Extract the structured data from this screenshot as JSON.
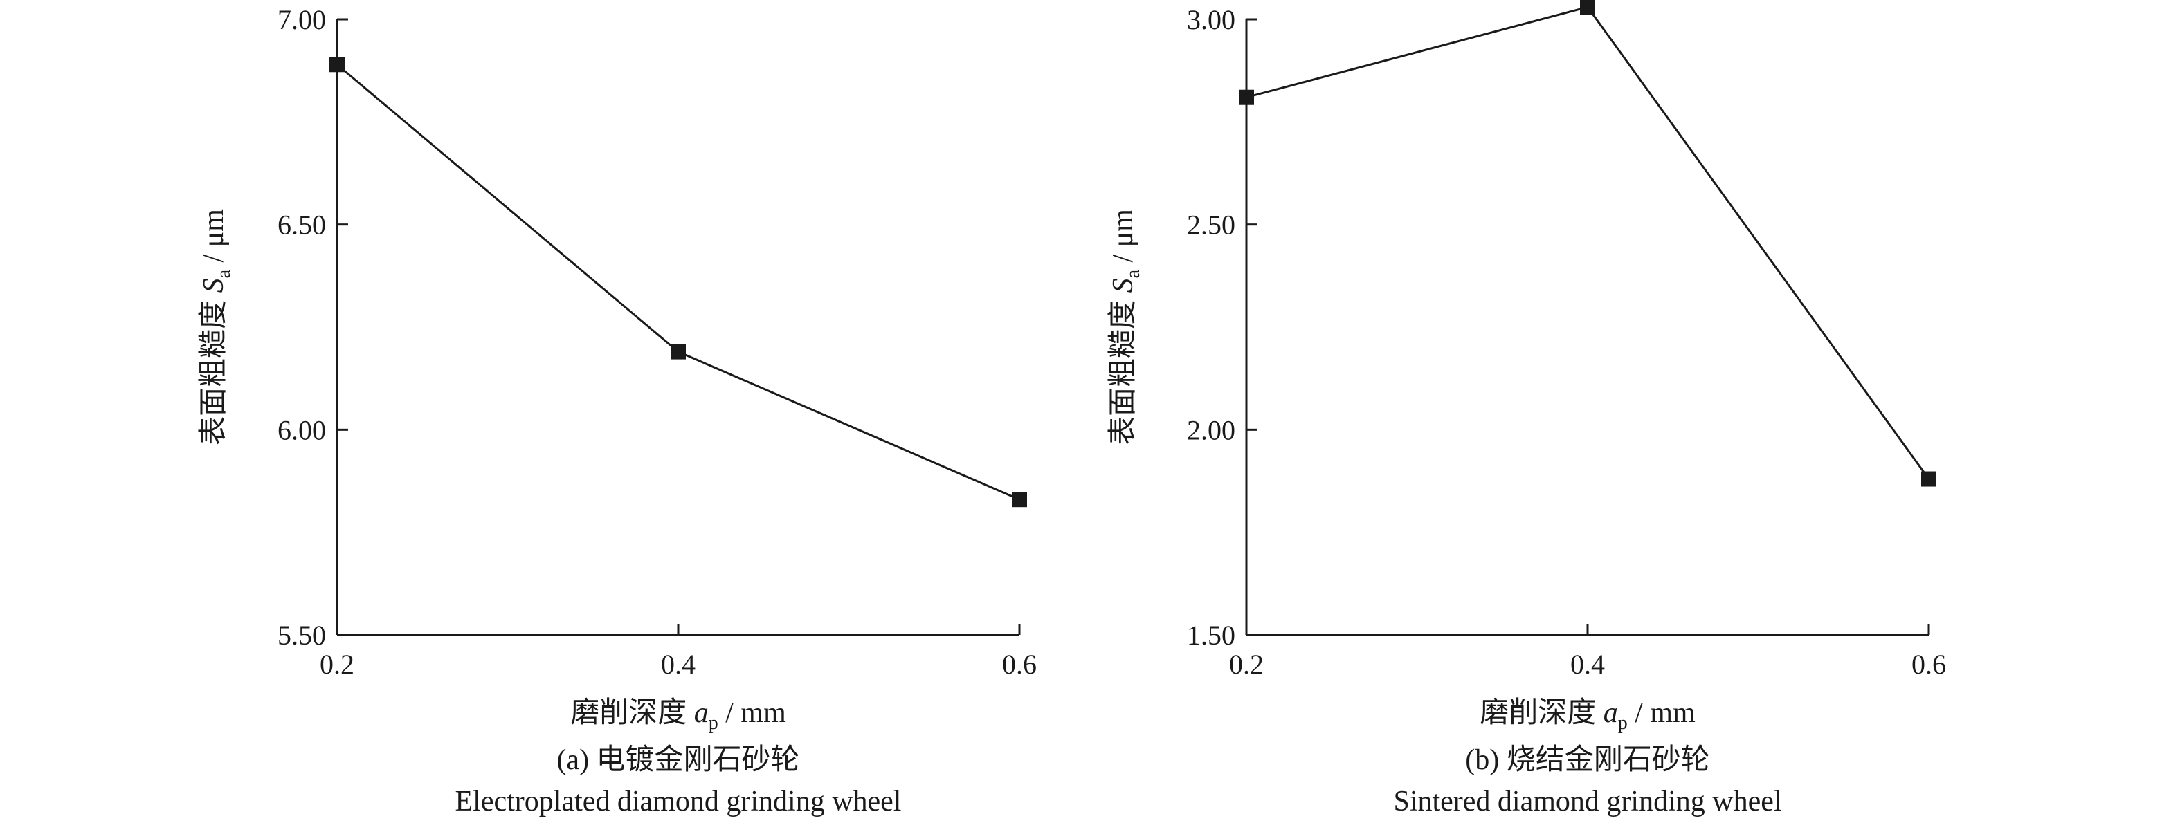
{
  "chart_data": [
    {
      "type": "line",
      "panel_label": "(a) 电镀金刚石砂轮",
      "panel_label_en": "Electroplated diamond grinding wheel",
      "xlabel": {
        "prefix": "磨削深度 ",
        "var": "a",
        "sub": "p",
        "unit": " / mm"
      },
      "ylabel": {
        "prefix": "表面粗糙度 ",
        "var": "S",
        "sub": "a",
        "unit": " / μm"
      },
      "x": [
        0.2,
        0.4,
        0.6
      ],
      "x_ticks": [
        "0.2",
        "0.4",
        "0.6"
      ],
      "xlim": [
        0.2,
        0.6
      ],
      "y_ticks": [
        "5.50",
        "6.00",
        "6.50",
        "7.00"
      ],
      "ylim": [
        5.5,
        7.0
      ],
      "series": [
        {
          "values": [
            6.89,
            6.19,
            5.83
          ]
        }
      ],
      "marker": "square",
      "grid": false
    },
    {
      "type": "line",
      "panel_label": "(b) 烧结金刚石砂轮",
      "panel_label_en": "Sintered diamond grinding wheel",
      "xlabel": {
        "prefix": "磨削深度 ",
        "var": "a",
        "sub": "p",
        "unit": " / mm"
      },
      "ylabel": {
        "prefix": "表面粗糙度 ",
        "var": "S",
        "sub": "a",
        "unit": " / μm"
      },
      "x": [
        0.2,
        0.4,
        0.6
      ],
      "x_ticks": [
        "0.2",
        "0.4",
        "0.6"
      ],
      "xlim": [
        0.2,
        0.6
      ],
      "y_ticks": [
        "1.50",
        "2.00",
        "2.50",
        "3.00"
      ],
      "ylim": [
        1.5,
        3.0
      ],
      "series": [
        {
          "values": [
            2.81,
            3.03,
            1.88
          ]
        }
      ],
      "marker": "square",
      "grid": false
    }
  ]
}
